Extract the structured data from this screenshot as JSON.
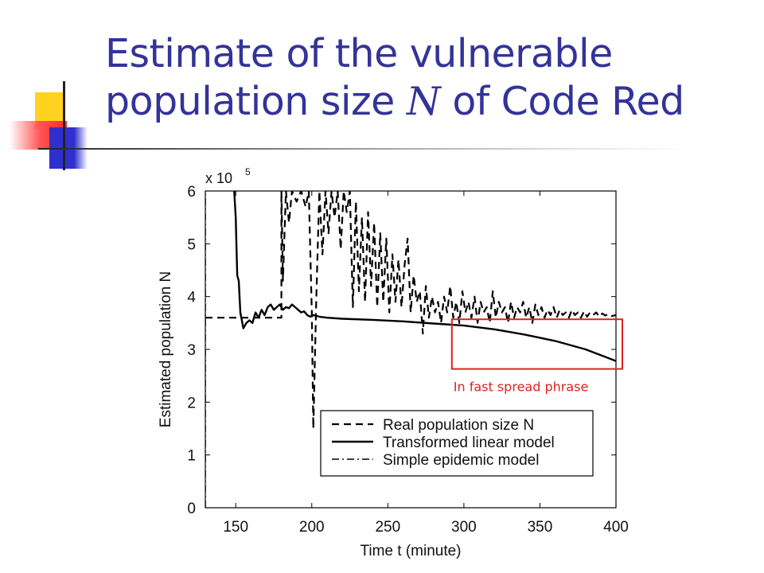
{
  "slide": {
    "title_part1": "Estimate of the vulnerable population size ",
    "title_var": "N",
    "title_part2": " of Code Red",
    "accent_colors": [
      "#333399",
      "#ffcc00",
      "#ff3333",
      "#3333cc"
    ],
    "annotation": {
      "text": "In fast spread phrase",
      "color": "#dd2222",
      "x_range": [
        290,
        400
      ],
      "y_range": [
        2.75,
        3.6
      ]
    }
  },
  "chart_data": {
    "type": "line",
    "title": "",
    "xlabel": "Time t (minute)",
    "ylabel": "Estimated population N",
    "y_multiplier_label": "x 10",
    "y_multiplier_exp": "5",
    "xlim": [
      130,
      400
    ],
    "ylim": [
      0,
      6
    ],
    "xticks": [
      150,
      200,
      250,
      300,
      350,
      400
    ],
    "yticks": [
      0,
      1,
      2,
      3,
      4,
      5,
      6
    ],
    "grid": false,
    "legend": "lower-right",
    "series": [
      {
        "name": "Real population size N",
        "style": "dashed",
        "points": [
          [
            130,
            3.6
          ],
          [
            180,
            3.6
          ],
          [
            180,
            6.0
          ],
          [
            181,
            4.3
          ],
          [
            183,
            6.0
          ],
          [
            185,
            5.4
          ],
          [
            187,
            6.0
          ],
          [
            190,
            5.8
          ],
          [
            193,
            6.0
          ],
          [
            196,
            5.7
          ],
          [
            198,
            6.0
          ],
          [
            200,
            3.7
          ],
          [
            201,
            1.5
          ],
          [
            203,
            4.0
          ],
          [
            205,
            6.0
          ],
          [
            207,
            4.8
          ],
          [
            209,
            6.0
          ],
          [
            211,
            5.2
          ],
          [
            213,
            6.0
          ],
          [
            215,
            5.5
          ],
          [
            217,
            6.0
          ],
          [
            219,
            4.9
          ],
          [
            221,
            6.0
          ],
          [
            223,
            5.6
          ],
          [
            225,
            6.0
          ],
          [
            227,
            3.8
          ],
          [
            229,
            5.8
          ],
          [
            231,
            4.1
          ],
          [
            233,
            5.5
          ],
          [
            235,
            3.9
          ],
          [
            237,
            5.6
          ],
          [
            239,
            4.2
          ],
          [
            241,
            5.4
          ],
          [
            243,
            3.8
          ],
          [
            245,
            5.2
          ],
          [
            247,
            3.9
          ],
          [
            249,
            5.1
          ],
          [
            251,
            3.7
          ],
          [
            253,
            4.8
          ],
          [
            255,
            3.9
          ],
          [
            257,
            4.7
          ],
          [
            259,
            3.8
          ],
          [
            261,
            4.6
          ],
          [
            263,
            5.1
          ],
          [
            265,
            3.7
          ],
          [
            267,
            4.4
          ],
          [
            269,
            3.9
          ],
          [
            271,
            4.1
          ],
          [
            273,
            3.3
          ],
          [
            275,
            4.2
          ],
          [
            277,
            3.6
          ],
          [
            279,
            4.0
          ],
          [
            281,
            3.7
          ],
          [
            283,
            3.9
          ],
          [
            285,
            3.5
          ],
          [
            287,
            4.0
          ],
          [
            289,
            3.7
          ],
          [
            291,
            4.2
          ],
          [
            293,
            3.6
          ],
          [
            295,
            3.9
          ],
          [
            297,
            3.5
          ],
          [
            299,
            4.1
          ],
          [
            301,
            3.7
          ],
          [
            303,
            3.9
          ],
          [
            305,
            3.6
          ],
          [
            307,
            4.0
          ],
          [
            309,
            3.5
          ],
          [
            311,
            3.9
          ],
          [
            313,
            3.7
          ],
          [
            315,
            3.8
          ],
          [
            317,
            3.5
          ],
          [
            319,
            4.1
          ],
          [
            321,
            3.6
          ],
          [
            323,
            3.9
          ],
          [
            325,
            3.7
          ],
          [
            327,
            3.8
          ],
          [
            329,
            3.5
          ],
          [
            331,
            3.9
          ],
          [
            333,
            3.6
          ],
          [
            335,
            3.8
          ],
          [
            337,
            3.7
          ],
          [
            339,
            3.9
          ],
          [
            341,
            3.6
          ],
          [
            343,
            3.8
          ],
          [
            345,
            3.5
          ],
          [
            347,
            3.85
          ],
          [
            349,
            3.65
          ],
          [
            351,
            3.8
          ],
          [
            353,
            3.6
          ],
          [
            355,
            3.75
          ],
          [
            357,
            3.65
          ],
          [
            359,
            3.8
          ],
          [
            361,
            3.6
          ],
          [
            363,
            3.75
          ],
          [
            365,
            3.65
          ],
          [
            367,
            3.7
          ],
          [
            369,
            3.6
          ],
          [
            371,
            3.75
          ],
          [
            373,
            3.65
          ],
          [
            375,
            3.7
          ],
          [
            377,
            3.6
          ],
          [
            379,
            3.72
          ],
          [
            381,
            3.62
          ],
          [
            383,
            3.7
          ],
          [
            385,
            3.65
          ],
          [
            387,
            3.7
          ],
          [
            389,
            3.62
          ],
          [
            391,
            3.68
          ],
          [
            393,
            3.64
          ],
          [
            395,
            3.67
          ],
          [
            397,
            3.63
          ],
          [
            400,
            3.65
          ]
        ]
      },
      {
        "name": "Transformed linear model",
        "style": "solid",
        "points": [
          [
            149,
            6.0
          ],
          [
            150,
            5.5
          ],
          [
            151,
            4.4
          ],
          [
            152,
            4.3
          ],
          [
            153,
            3.7
          ],
          [
            154,
            3.55
          ],
          [
            155,
            3.4
          ],
          [
            157,
            3.5
          ],
          [
            159,
            3.55
          ],
          [
            161,
            3.5
          ],
          [
            163,
            3.7
          ],
          [
            165,
            3.6
          ],
          [
            167,
            3.75
          ],
          [
            169,
            3.65
          ],
          [
            171,
            3.8
          ],
          [
            173,
            3.85
          ],
          [
            175,
            3.75
          ],
          [
            177,
            3.8
          ],
          [
            179,
            3.85
          ],
          [
            181,
            3.75
          ],
          [
            183,
            3.8
          ],
          [
            185,
            3.78
          ],
          [
            187,
            3.85
          ],
          [
            189,
            3.8
          ],
          [
            191,
            3.75
          ],
          [
            193,
            3.7
          ],
          [
            195,
            3.72
          ],
          [
            197,
            3.65
          ],
          [
            199,
            3.62
          ],
          [
            201,
            3.65
          ],
          [
            205,
            3.62
          ],
          [
            210,
            3.6
          ],
          [
            220,
            3.58
          ],
          [
            240,
            3.56
          ],
          [
            260,
            3.53
          ],
          [
            280,
            3.49
          ],
          [
            300,
            3.45
          ],
          [
            320,
            3.38
          ],
          [
            340,
            3.28
          ],
          [
            360,
            3.16
          ],
          [
            380,
            3.0
          ],
          [
            400,
            2.78
          ]
        ]
      },
      {
        "name": "Simple epidemic model",
        "style": "dashdot",
        "points": [
          [
            130,
            0.0
          ],
          [
            130,
            6.0
          ]
        ]
      }
    ]
  }
}
